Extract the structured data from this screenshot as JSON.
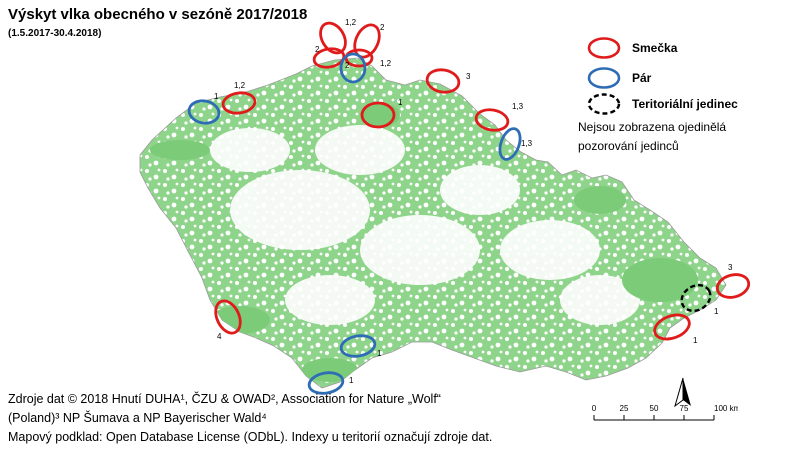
{
  "title": "Výskyt vlka obecného v sezóně 2017/2018",
  "subtitle": "(1.5.2017-30.4.2018)",
  "colors": {
    "pack": "#e01b1b",
    "pair": "#2e6db5",
    "territorial": "#000000",
    "forest": "#7ccb78",
    "land": "#ffffff",
    "border": "#999999"
  },
  "legend": {
    "pack": "Smečka",
    "pair": "Pár",
    "territorial": "Teritoriální jedinec",
    "note": "Nejsou zobrazena ojedinělá pozorování jedinců"
  },
  "markers": [
    {
      "type": "pair",
      "label": "1"
    },
    {
      "type": "pack",
      "label": "1,2"
    },
    {
      "type": "pack",
      "label": "1,2"
    },
    {
      "type": "pack",
      "label": "2"
    },
    {
      "type": "pack",
      "label": "2"
    },
    {
      "type": "pack",
      "label": "2"
    },
    {
      "type": "pair",
      "label": "1,2"
    },
    {
      "type": "pack",
      "label": "3"
    },
    {
      "type": "pack",
      "label": "1"
    },
    {
      "type": "pack",
      "label": "1,3"
    },
    {
      "type": "pair",
      "label": "1,3"
    },
    {
      "type": "pack",
      "label": "3"
    },
    {
      "type": "territorial",
      "label": "1"
    },
    {
      "type": "pack",
      "label": "1"
    },
    {
      "type": "pack",
      "label": "4"
    },
    {
      "type": "pair",
      "label": "1"
    },
    {
      "type": "pair",
      "label": "1"
    }
  ],
  "scalebar": {
    "ticks": [
      "0",
      "25",
      "50",
      "75",
      "100 km"
    ]
  },
  "north_label": "N",
  "sources": {
    "line1": "Zdroje dat © 2018 Hnutí DUHA¹, ČZU & OWAD², Association for Nature „Wolf“",
    "line2": "(Poland)³ NP Šumava a NP Bayerischer Wald⁴",
    "line3": "Mapový podklad: Open Database License (ODbL). Indexy u teritorií označují zdroje dat."
  }
}
